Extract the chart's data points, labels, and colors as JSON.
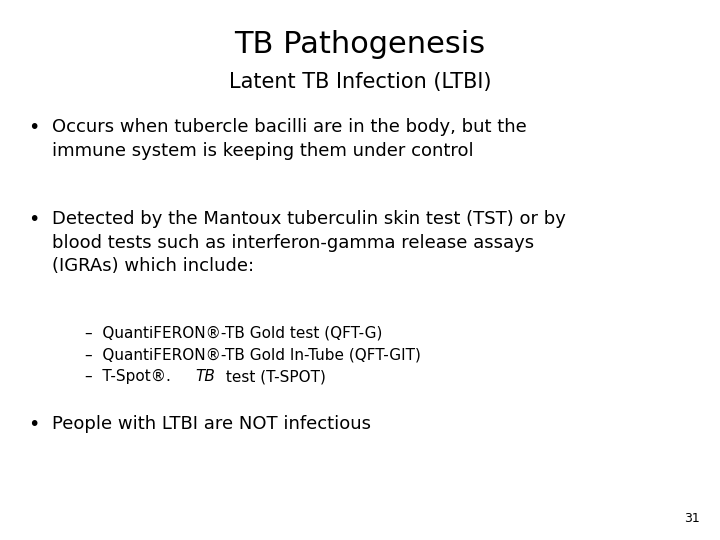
{
  "title": "TB Pathogenesis",
  "subtitle": "Latent TB Infection (LTBI)",
  "background_color": "#ffffff",
  "text_color": "#000000",
  "title_fontsize": 22,
  "subtitle_fontsize": 15,
  "body_fontsize": 13,
  "sub_fontsize": 11,
  "page_number": "31",
  "bullet1": "Occurs when tubercle bacilli are in the body, but the\nimmune system is keeping them under control",
  "bullet2_text": "Detected by the Mantoux tuberculin skin test (TST) or by\nblood tests such as interferon-gamma release assays\n(IGRAs) which include:",
  "sub1": "–  QuantiFERON®-TB Gold test (QFT-G)",
  "sub2": "–  QuantiFERON®-TB Gold In-Tube (QFT-GIT)",
  "sub3_prefix": "–  T-Spot®.",
  "sub3_italic": "TB",
  "sub3_suffix": " test (T-SPOT)",
  "bullet3": "People with LTBI are NOT infectious",
  "font_family": "DejaVu Sans"
}
